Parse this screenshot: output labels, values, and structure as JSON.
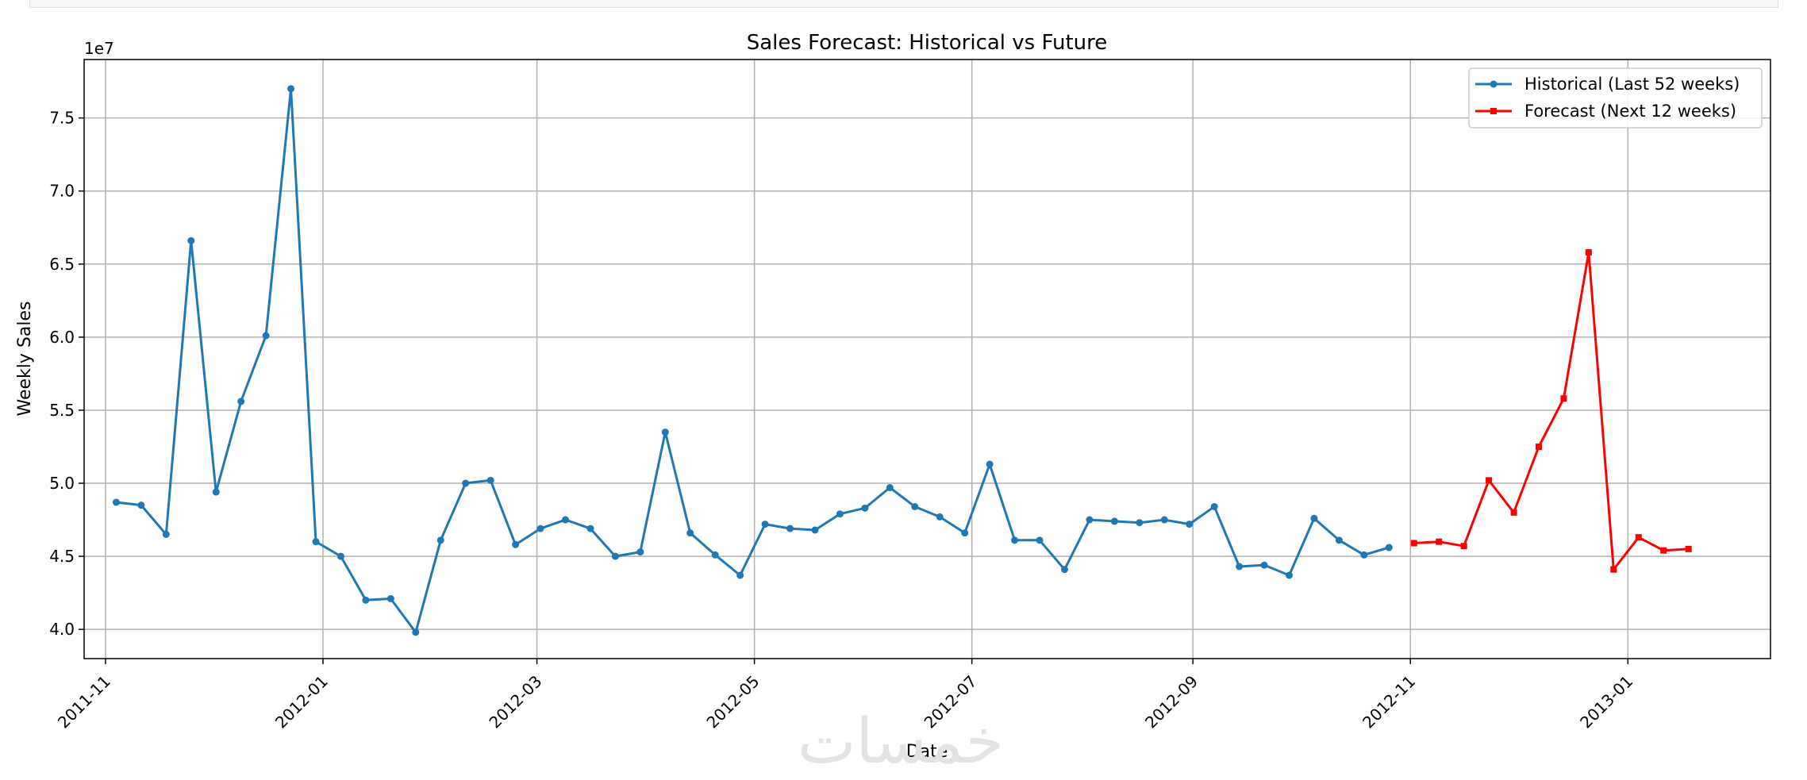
{
  "chart_data": {
    "type": "line",
    "title": "Sales Forecast: Historical vs Future",
    "xlabel": "Date",
    "ylabel": "Weekly Sales",
    "y_offset_label": "1e7",
    "y_scale": 10000000,
    "xlim": [
      "2011-10-26",
      "2013-02-10"
    ],
    "ylim": [
      38000000,
      79000000
    ],
    "x_ticks": [
      "2011-11",
      "2012-01",
      "2012-03",
      "2012-05",
      "2012-07",
      "2012-09",
      "2012-11",
      "2013-01"
    ],
    "y_ticks": [
      4.0,
      4.5,
      5.0,
      5.5,
      6.0,
      6.5,
      7.0,
      7.5
    ],
    "grid": true,
    "legend_position": "upper right",
    "series": [
      {
        "name": "Historical (Last 52 weeks)",
        "color": "#1f77b4",
        "marker": "circle",
        "x": [
          "2011-11-04",
          "2011-11-11",
          "2011-11-18",
          "2011-11-25",
          "2011-12-02",
          "2011-12-09",
          "2011-12-16",
          "2011-12-23",
          "2011-12-30",
          "2012-01-06",
          "2012-01-13",
          "2012-01-20",
          "2012-01-27",
          "2012-02-03",
          "2012-02-10",
          "2012-02-17",
          "2012-02-24",
          "2012-03-02",
          "2012-03-09",
          "2012-03-16",
          "2012-03-23",
          "2012-03-30",
          "2012-04-06",
          "2012-04-13",
          "2012-04-20",
          "2012-04-27",
          "2012-05-04",
          "2012-05-11",
          "2012-05-18",
          "2012-05-25",
          "2012-06-01",
          "2012-06-08",
          "2012-06-15",
          "2012-06-22",
          "2012-06-29",
          "2012-07-06",
          "2012-07-13",
          "2012-07-20",
          "2012-07-27",
          "2012-08-03",
          "2012-08-10",
          "2012-08-17",
          "2012-08-24",
          "2012-08-31",
          "2012-09-07",
          "2012-09-14",
          "2012-09-21",
          "2012-09-28",
          "2012-10-05",
          "2012-10-12",
          "2012-10-19",
          "2012-10-26"
        ],
        "values": [
          48700000,
          48500000,
          46500000,
          66600000,
          49400000,
          55600000,
          60100000,
          77000000,
          46000000,
          45000000,
          42000000,
          42100000,
          39800000,
          46100000,
          50000000,
          50200000,
          45800000,
          46900000,
          47500000,
          46900000,
          45000000,
          45300000,
          53500000,
          46600000,
          45100000,
          43700000,
          47200000,
          46900000,
          46800000,
          47900000,
          48300000,
          49700000,
          48400000,
          47700000,
          46600000,
          51300000,
          46100000,
          46100000,
          44100000,
          47500000,
          47400000,
          47300000,
          47500000,
          47200000,
          48400000,
          44300000,
          44400000,
          43700000,
          47600000,
          46100000,
          45100000,
          45600000
        ]
      },
      {
        "name": "Forecast (Next 12 weeks)",
        "color": "#ff0000",
        "marker": "square",
        "x": [
          "2012-11-02",
          "2012-11-09",
          "2012-11-16",
          "2012-11-23",
          "2012-11-30",
          "2012-12-07",
          "2012-12-14",
          "2012-12-21",
          "2012-12-28",
          "2013-01-04",
          "2013-01-11",
          "2013-01-18"
        ],
        "values": [
          45900000,
          46000000,
          45700000,
          50200000,
          48000000,
          52500000,
          55800000,
          65800000,
          44100000,
          46300000,
          45400000,
          45500000
        ]
      }
    ]
  }
}
